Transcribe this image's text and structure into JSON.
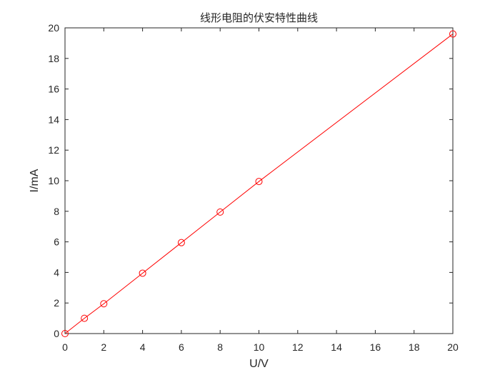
{
  "chart_data": {
    "type": "line",
    "title": "线形电阻的伏安特性曲线",
    "xlabel": "U/V",
    "ylabel": "I/mA",
    "xlim": [
      0,
      20
    ],
    "ylim": [
      0,
      20
    ],
    "xticks": [
      "0",
      "2",
      "4",
      "6",
      "8",
      "10",
      "12",
      "14",
      "16",
      "18",
      "20"
    ],
    "yticks": [
      "0",
      "2",
      "4",
      "6",
      "8",
      "10",
      "12",
      "14",
      "16",
      "18",
      "20"
    ],
    "grid": false,
    "legend": "none",
    "series": [
      {
        "color": "#ff0000",
        "marker": "circle",
        "line": "solid",
        "x": [
          0,
          1,
          2,
          4,
          6,
          8,
          10,
          20
        ],
        "y": [
          0,
          1.0,
          1.95,
          3.95,
          5.95,
          7.95,
          9.95,
          19.6
        ]
      }
    ]
  }
}
